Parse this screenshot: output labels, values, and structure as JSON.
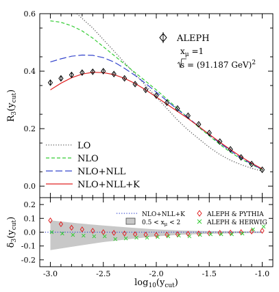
{
  "chart_data": [
    {
      "type": "line",
      "panel": "top",
      "ylabel": "R3(ycut)",
      "xlim": [
        -3.1,
        -0.9
      ],
      "ylim": [
        -0.04,
        0.6
      ],
      "y_ticks": [
        "0.0",
        "0.2",
        "0.4",
        "0.6"
      ],
      "annotation": {
        "experiment": "ALEPH",
        "param_line": "xμ =1",
        "energy_line": "s = (91.187 GeV)2"
      },
      "legend_position": "bottom-left",
      "series": [
        {
          "name": "LO",
          "style": "dotted",
          "color": "#555555",
          "x": [
            -2.75,
            -2.6,
            -2.5,
            -2.4,
            -2.3,
            -2.2,
            -2.1,
            -2.0,
            -1.9,
            -1.8,
            -1.7,
            -1.6,
            -1.5,
            -1.4,
            -1.3,
            -1.2,
            -1.1,
            -1.0
          ],
          "y": [
            0.6,
            0.55,
            0.51,
            0.47,
            0.43,
            0.39,
            0.35,
            0.31,
            0.27,
            0.23,
            0.195,
            0.165,
            0.135,
            0.11,
            0.09,
            0.075,
            0.062,
            0.052
          ]
        },
        {
          "name": "NLO",
          "style": "dashed",
          "color": "#33cc33",
          "x": [
            -3.0,
            -2.9,
            -2.8,
            -2.7,
            -2.6,
            -2.5,
            -2.4,
            -2.3,
            -2.2,
            -2.1,
            -2.0,
            -1.9,
            -1.8,
            -1.7,
            -1.6,
            -1.5,
            -1.4,
            -1.3,
            -1.2,
            -1.1,
            -1.0
          ],
          "y": [
            0.575,
            0.57,
            0.558,
            0.54,
            0.515,
            0.485,
            0.455,
            0.425,
            0.395,
            0.365,
            0.335,
            0.303,
            0.27,
            0.238,
            0.205,
            0.175,
            0.145,
            0.118,
            0.095,
            0.075,
            0.057
          ]
        },
        {
          "name": "NLO+NLL",
          "style": "longdash",
          "color": "#3344cc",
          "x": [
            -3.0,
            -2.9,
            -2.8,
            -2.7,
            -2.6,
            -2.5,
            -2.4,
            -2.3,
            -2.2,
            -2.1,
            -2.0,
            -1.9,
            -1.8,
            -1.7,
            -1.6,
            -1.5,
            -1.4,
            -1.3,
            -1.2,
            -1.1,
            -1.0
          ],
          "y": [
            0.432,
            0.443,
            0.452,
            0.456,
            0.455,
            0.447,
            0.432,
            0.41,
            0.385,
            0.357,
            0.327,
            0.297,
            0.267,
            0.238,
            0.208,
            0.178,
            0.15,
            0.123,
            0.098,
            0.077,
            0.058
          ]
        },
        {
          "name": "NLO+NLL+K",
          "style": "solid",
          "color": "#e02020",
          "x": [
            -3.0,
            -2.9,
            -2.8,
            -2.7,
            -2.6,
            -2.5,
            -2.4,
            -2.3,
            -2.2,
            -2.1,
            -2.0,
            -1.9,
            -1.8,
            -1.7,
            -1.6,
            -1.5,
            -1.4,
            -1.3,
            -1.2,
            -1.1,
            -1.0
          ],
          "y": [
            0.335,
            0.358,
            0.377,
            0.39,
            0.396,
            0.395,
            0.388,
            0.375,
            0.357,
            0.335,
            0.31,
            0.285,
            0.26,
            0.235,
            0.208,
            0.18,
            0.153,
            0.127,
            0.102,
            0.08,
            0.06
          ]
        },
        {
          "name": "ALEPH",
          "style": "diamond",
          "color": "#000000",
          "x": [
            -3.0,
            -2.9,
            -2.8,
            -2.7,
            -2.6,
            -2.5,
            -2.4,
            -2.3,
            -2.2,
            -2.1,
            -2.0,
            -1.9,
            -1.8,
            -1.7,
            -1.6,
            -1.5,
            -1.4,
            -1.3,
            -1.2,
            -1.1,
            -1.0
          ],
          "y": [
            0.36,
            0.375,
            0.387,
            0.395,
            0.398,
            0.4,
            0.39,
            0.375,
            0.355,
            0.335,
            0.315,
            0.29,
            0.27,
            0.245,
            0.215,
            0.185,
            0.155,
            0.128,
            0.1,
            0.077,
            0.057
          ],
          "err": [
            0.008,
            0.007,
            0.007,
            0.006,
            0.006,
            0.006,
            0.005,
            0.005,
            0.005,
            0.005,
            0.004,
            0.004,
            0.004,
            0.004,
            0.004,
            0.003,
            0.003,
            0.003,
            0.003,
            0.003,
            0.003
          ]
        }
      ]
    },
    {
      "type": "scatter",
      "panel": "bottom",
      "xlabel": "log10(ycut)",
      "ylabel": "δ3(ycut)",
      "xlim": [
        -3.1,
        -0.9
      ],
      "ylim": [
        -0.25,
        0.25
      ],
      "x_ticks": [
        "-3.0",
        "-2.5",
        "-2.0",
        "-1.5",
        "-1.0"
      ],
      "y_ticks": [
        "-0.2",
        "-0.1",
        "0.0",
        "0.1",
        "0.2"
      ],
      "legend_position": "top-right",
      "band": {
        "name": "0.5 < xμ < 2",
        "color": "#c8c8c8",
        "x": [
          -3.0,
          -2.75,
          -2.5,
          -2.25,
          -2.0,
          -1.75,
          -1.5,
          -1.25,
          -1.0
        ],
        "upper": [
          0.085,
          0.065,
          0.048,
          0.033,
          0.02,
          0.012,
          0.008,
          0.006,
          0.005
        ],
        "lower": [
          -0.13,
          -0.1,
          -0.072,
          -0.05,
          -0.03,
          -0.018,
          -0.012,
          -0.008,
          -0.006
        ]
      },
      "series": [
        {
          "name": "NLO+NLL+K",
          "style": "dotted",
          "color": "#3344cc",
          "x": [
            -3.05,
            -1.0
          ],
          "y": [
            0.0,
            0.0
          ]
        },
        {
          "name": "ALEPH & PYTHIA",
          "style": "diamond",
          "color": "#e02020",
          "x": [
            -3.0,
            -2.9,
            -2.8,
            -2.7,
            -2.6,
            -2.5,
            -2.4,
            -2.3,
            -2.2,
            -2.1,
            -2.0,
            -1.9,
            -1.8,
            -1.7,
            -1.6,
            -1.5,
            -1.4,
            -1.3,
            -1.2,
            -1.1,
            -1.0
          ],
          "y": [
            0.085,
            0.058,
            0.032,
            0.02,
            0.01,
            0.0,
            -0.005,
            -0.01,
            -0.015,
            -0.018,
            -0.02,
            -0.018,
            -0.015,
            -0.012,
            -0.01,
            -0.008,
            -0.005,
            -0.003,
            0.0,
            0.005,
            0.01
          ]
        },
        {
          "name": "ALEPH & HERWIG",
          "style": "cross",
          "color": "#33cc33",
          "x": [
            -3.0,
            -2.9,
            -2.8,
            -2.7,
            -2.6,
            -2.5,
            -2.4,
            -2.3,
            -2.2,
            -2.1,
            -2.0,
            -1.9,
            -1.8,
            -1.7,
            -1.6,
            -1.5,
            -1.4,
            -1.3,
            -1.2,
            -1.1,
            -1.0
          ],
          "y": [
            0.0,
            -0.01,
            -0.02,
            -0.025,
            -0.03,
            -0.03,
            -0.05,
            -0.045,
            -0.04,
            -0.04,
            -0.035,
            -0.03,
            -0.025,
            -0.03,
            -0.02,
            -0.015,
            -0.015,
            -0.015,
            -0.01,
            0.02,
            0.04
          ]
        }
      ]
    }
  ]
}
